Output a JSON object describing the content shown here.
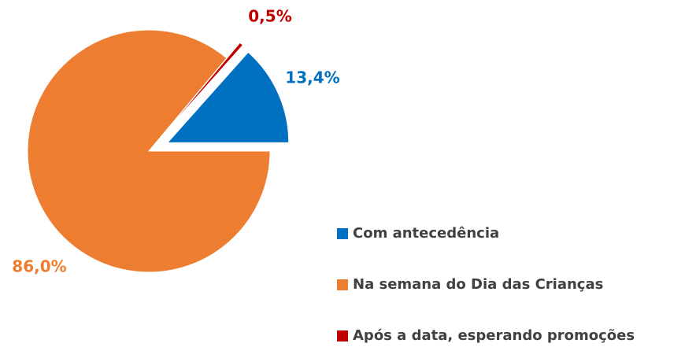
{
  "chart_data": {
    "type": "pie",
    "categories": [
      "Com antecedência",
      "Na semana do Dia das Crianças",
      "Após a data, esperando promoções"
    ],
    "values": [
      13.4,
      86.0,
      0.5
    ],
    "value_labels": [
      "13,4%",
      "86,0%",
      "0,5%"
    ],
    "colors": [
      "#0070c0",
      "#ed7d31",
      "#c00000"
    ],
    "legend": "right"
  }
}
